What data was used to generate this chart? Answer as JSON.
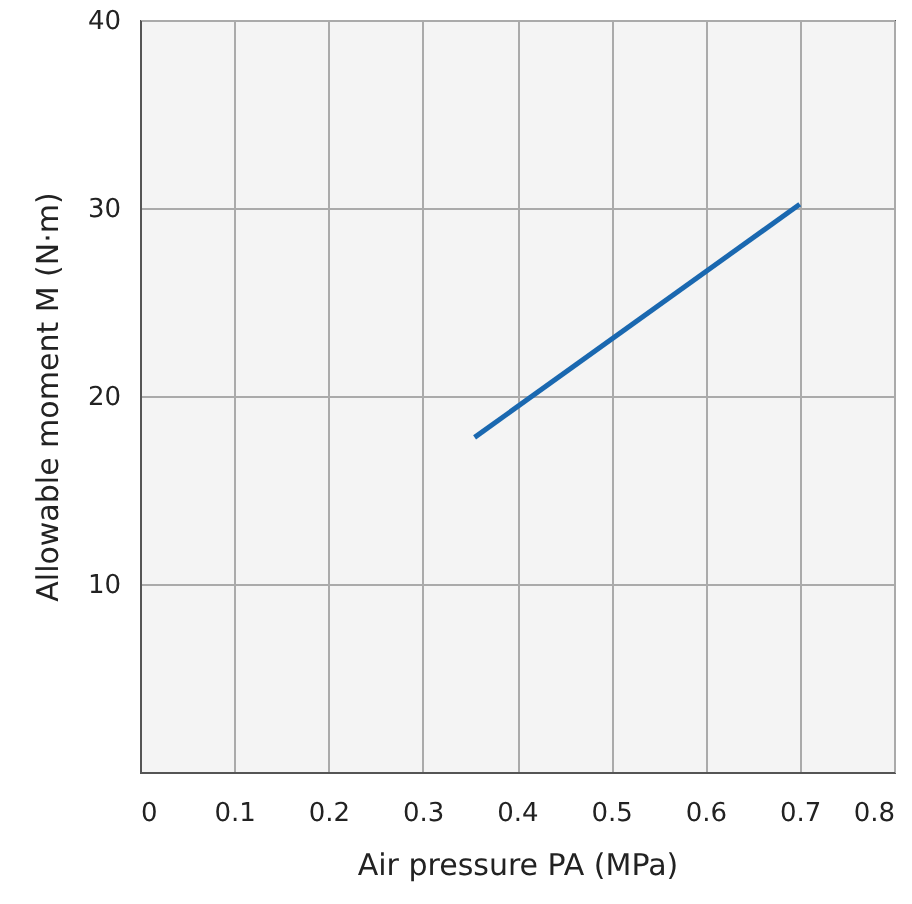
{
  "chart_data": {
    "type": "line",
    "xlabel": "Air pressure PA  (MPa)",
    "ylabel": "Allowable moment M  (N·m)",
    "x": [
      0.355,
      0.7
    ],
    "series": [
      {
        "color": "#1a68b0",
        "values": [
          17.8,
          30.2
        ]
      }
    ],
    "xlim": [
      0,
      0.8
    ],
    "xticks": [
      0,
      0.1,
      0.2,
      0.3,
      0.4,
      0.5,
      0.6,
      0.7,
      0.8
    ],
    "ylim": [
      0,
      40
    ],
    "yticks": [
      {
        "value": 0,
        "label": null
      },
      10,
      20,
      30,
      40
    ],
    "grid": true,
    "marker": "none",
    "line_style": "solid"
  }
}
